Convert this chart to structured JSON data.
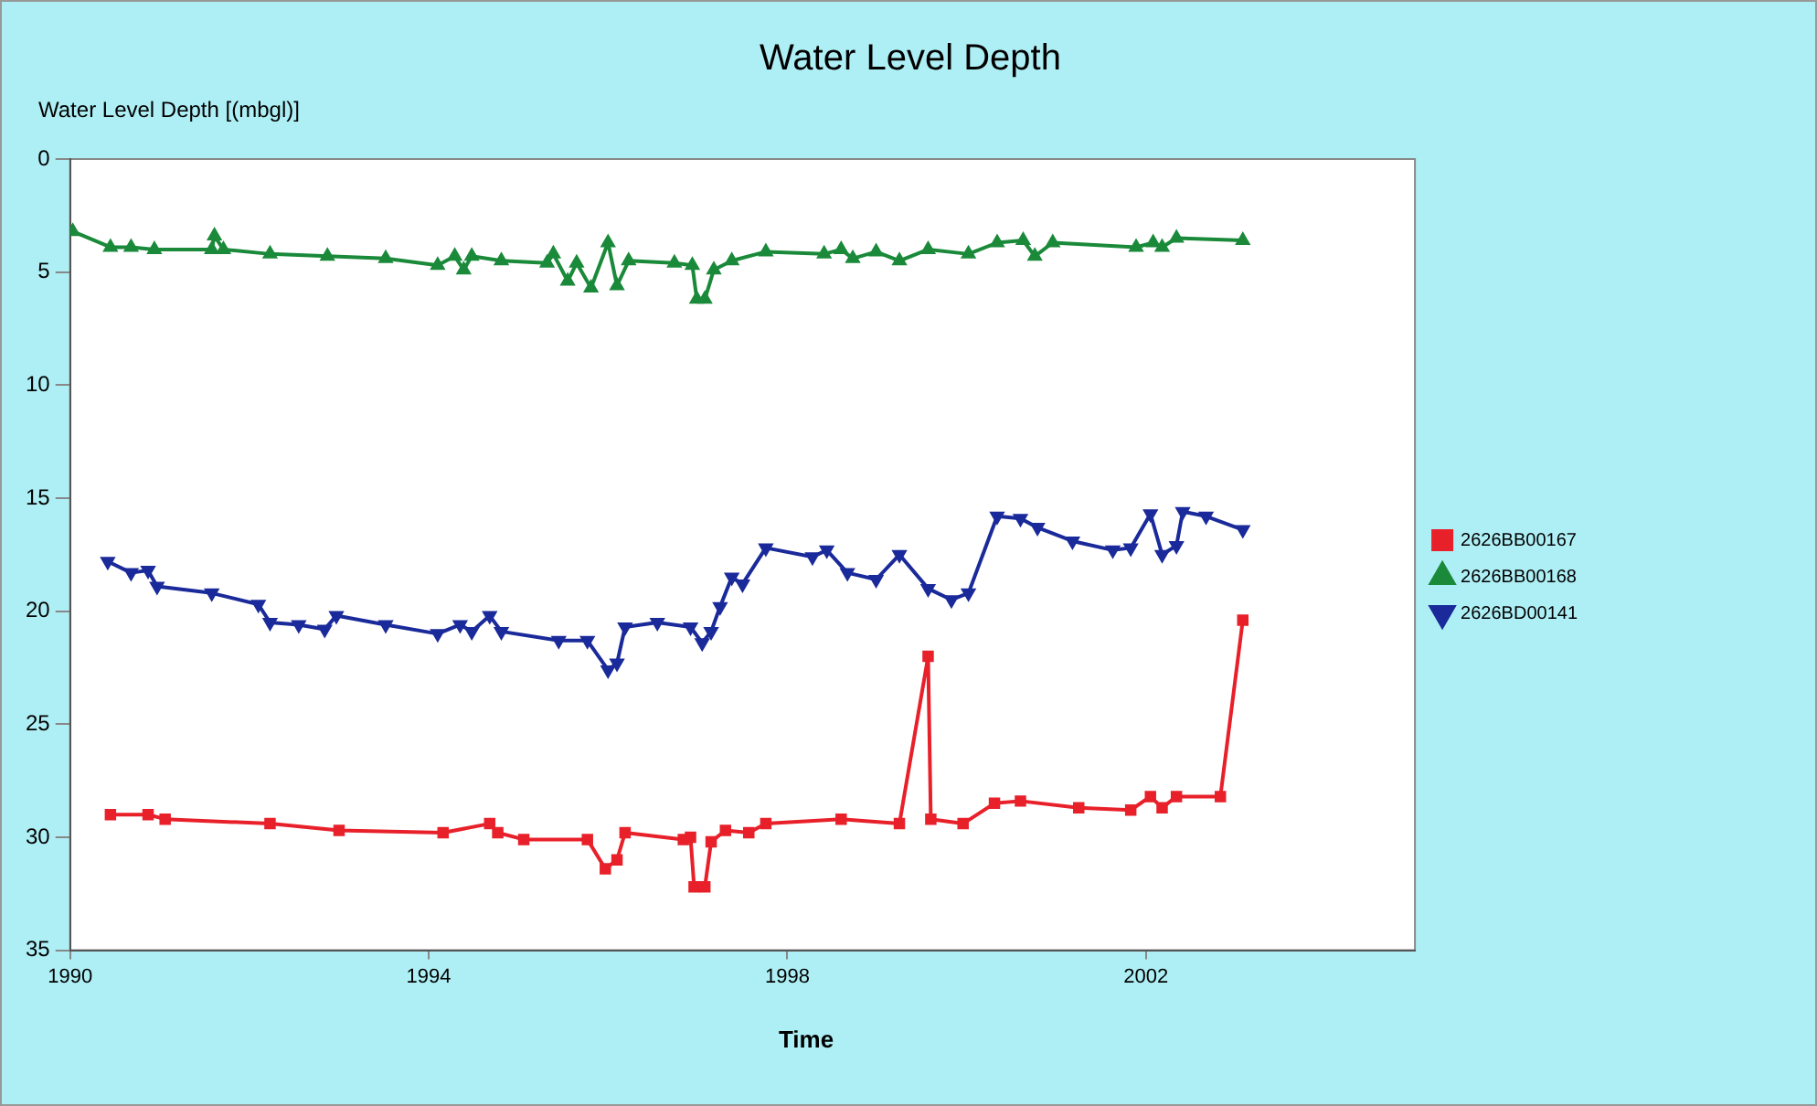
{
  "chart_data": {
    "type": "line",
    "title": "Water Level Depth",
    "ylabel": "Water Level Depth [(mbgl)]",
    "xlabel": "Time",
    "xlim": [
      1990,
      2005
    ],
    "xticks": [
      1990,
      1994,
      1998,
      2002
    ],
    "ylim": [
      35,
      0
    ],
    "yticks": [
      0,
      5,
      10,
      15,
      20,
      25,
      30,
      35
    ],
    "grid": false,
    "legend": "right",
    "line_style": "solid",
    "series": [
      {
        "name": "2626BB00167",
        "color": "#e8202a",
        "marker": "square",
        "x": [
          1990.45,
          1990.87,
          1991.06,
          1992.23,
          1993.0,
          1994.16,
          1994.68,
          1994.77,
          1995.06,
          1995.77,
          1995.97,
          1996.1,
          1996.19,
          1996.84,
          1996.92,
          1996.96,
          1997.08,
          1997.15,
          1997.31,
          1997.57,
          1997.76,
          1998.6,
          1999.25,
          1999.57,
          1999.6,
          1999.96,
          2000.31,
          2000.6,
          2001.25,
          2001.83,
          2002.05,
          2002.18,
          2002.34,
          2002.83,
          2003.08
        ],
        "values": [
          29.0,
          29.0,
          29.2,
          29.4,
          29.7,
          29.8,
          29.4,
          29.8,
          30.1,
          30.1,
          31.4,
          31.0,
          29.8,
          30.1,
          30.0,
          32.2,
          32.2,
          30.2,
          29.7,
          29.8,
          29.4,
          29.2,
          29.4,
          22.0,
          29.2,
          29.4,
          28.5,
          28.4,
          28.7,
          28.8,
          28.2,
          28.7,
          28.2,
          28.2,
          20.4
        ]
      },
      {
        "name": "2626BB00168",
        "color": "#1a8a3a",
        "marker": "triangle",
        "x": [
          1990.03,
          1990.45,
          1990.68,
          1990.94,
          1991.58,
          1991.61,
          1991.71,
          1992.23,
          1992.87,
          1993.52,
          1994.1,
          1994.29,
          1994.39,
          1994.48,
          1994.81,
          1995.32,
          1995.39,
          1995.55,
          1995.65,
          1995.81,
          1996.0,
          1996.1,
          1996.23,
          1996.74,
          1996.94,
          1996.99,
          1997.08,
          1997.18,
          1997.38,
          1997.76,
          1998.41,
          1998.6,
          1998.73,
          1998.99,
          1999.25,
          1999.57,
          2000.02,
          2000.34,
          2000.63,
          2000.76,
          2000.96,
          2001.89,
          2002.08,
          2002.18,
          2002.34,
          2003.08
        ],
        "values": [
          3.2,
          3.9,
          3.9,
          4.0,
          4.0,
          3.4,
          4.0,
          4.2,
          4.3,
          4.4,
          4.7,
          4.3,
          4.9,
          4.3,
          4.5,
          4.6,
          4.2,
          5.4,
          4.6,
          5.7,
          3.7,
          5.6,
          4.5,
          4.6,
          4.7,
          6.2,
          6.2,
          4.9,
          4.5,
          4.1,
          4.2,
          4.0,
          4.4,
          4.1,
          4.5,
          4.0,
          4.2,
          3.7,
          3.6,
          4.3,
          3.7,
          3.9,
          3.7,
          3.9,
          3.5,
          3.6
        ]
      },
      {
        "name": "2626BD00141",
        "color": "#1a2a9a",
        "marker": "triangle",
        "x": [
          1990.42,
          1990.68,
          1990.87,
          1990.97,
          1991.58,
          1992.1,
          1992.23,
          1992.55,
          1992.84,
          1992.97,
          1993.52,
          1994.1,
          1994.35,
          1994.48,
          1994.68,
          1994.81,
          1995.45,
          1995.77,
          1996.0,
          1996.1,
          1996.19,
          1996.55,
          1996.92,
          1997.05,
          1997.15,
          1997.25,
          1997.38,
          1997.5,
          1997.76,
          1998.28,
          1998.44,
          1998.67,
          1998.99,
          1999.25,
          1999.57,
          1999.83,
          2000.02,
          2000.34,
          2000.6,
          2000.79,
          2001.18,
          2001.63,
          2001.83,
          2002.05,
          2002.18,
          2002.34,
          2002.41,
          2002.67,
          2003.08
        ],
        "values": [
          17.8,
          18.3,
          18.2,
          18.9,
          19.2,
          19.7,
          20.5,
          20.6,
          20.8,
          20.2,
          20.6,
          21.0,
          20.6,
          20.9,
          20.2,
          20.9,
          21.3,
          21.3,
          22.6,
          22.3,
          20.7,
          20.5,
          20.7,
          21.4,
          20.9,
          19.8,
          18.5,
          18.8,
          17.2,
          17.6,
          17.3,
          18.3,
          18.6,
          17.5,
          19.0,
          19.5,
          19.2,
          15.8,
          15.9,
          16.3,
          16.9,
          17.3,
          17.2,
          15.7,
          17.5,
          17.1,
          15.6,
          15.8,
          16.4
        ]
      }
    ]
  }
}
